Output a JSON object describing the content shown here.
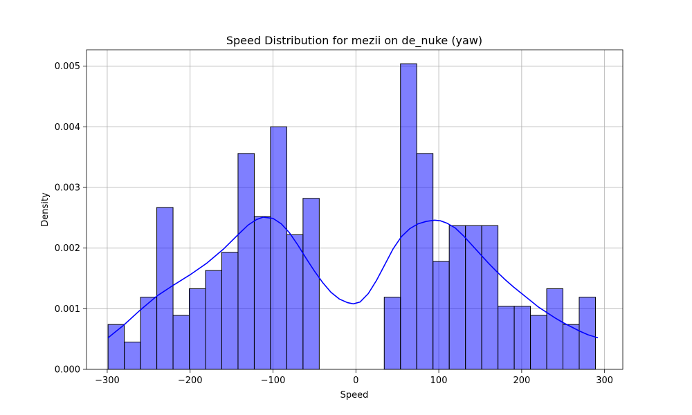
{
  "chart_data": {
    "type": "bar",
    "title": "Speed Distribution for mezii on de_nuke (yaw)",
    "xlabel": "Speed",
    "ylabel": "Density",
    "xlim": [
      -325,
      322
    ],
    "ylim": [
      0,
      0.00527
    ],
    "xticks": [
      -300,
      -200,
      -100,
      0,
      100,
      200,
      300
    ],
    "xtick_labels": [
      "−300",
      "−200",
      "−100",
      "0",
      "100",
      "200",
      "300"
    ],
    "yticks": [
      0,
      0.001,
      0.002,
      0.003,
      0.004,
      0.005
    ],
    "ytick_labels": [
      "0.000",
      "0.001",
      "0.002",
      "0.003",
      "0.004",
      "0.005"
    ],
    "grid": true,
    "bar_color": "#0000ff",
    "kde_color": "#0000ff",
    "bins": [
      {
        "x0": -299.0,
        "x1": -279.4,
        "density": 0.00074
      },
      {
        "x0": -279.4,
        "x1": -259.8,
        "density": 0.00045
      },
      {
        "x0": -259.8,
        "x1": -240.2,
        "density": 0.00119
      },
      {
        "x0": -240.2,
        "x1": -220.6,
        "density": 0.00267
      },
      {
        "x0": -220.6,
        "x1": -201.0,
        "density": 0.00089
      },
      {
        "x0": -201.0,
        "x1": -181.4,
        "density": 0.00133
      },
      {
        "x0": -181.4,
        "x1": -161.8,
        "density": 0.00163
      },
      {
        "x0": -161.8,
        "x1": -142.2,
        "density": 0.00193
      },
      {
        "x0": -142.2,
        "x1": -122.6,
        "density": 0.00356
      },
      {
        "x0": -122.6,
        "x1": -103.0,
        "density": 0.00252
      },
      {
        "x0": -103.0,
        "x1": -83.4,
        "density": 0.004
      },
      {
        "x0": -83.4,
        "x1": -63.8,
        "density": 0.00222
      },
      {
        "x0": -63.8,
        "x1": -44.2,
        "density": 0.00282
      },
      {
        "x0": -44.2,
        "x1": -24.6,
        "density": 0
      },
      {
        "x0": -24.6,
        "x1": -5.0,
        "density": 0
      },
      {
        "x0": -5.0,
        "x1": 14.6,
        "density": 0
      },
      {
        "x0": 14.6,
        "x1": 34.2,
        "density": 0
      },
      {
        "x0": 34.2,
        "x1": 53.8,
        "density": 0.00119
      },
      {
        "x0": 53.8,
        "x1": 73.4,
        "density": 0.00504
      },
      {
        "x0": 73.4,
        "x1": 93.0,
        "density": 0.00356
      },
      {
        "x0": 93.0,
        "x1": 112.6,
        "density": 0.00178
      },
      {
        "x0": 112.6,
        "x1": 132.2,
        "density": 0.00237
      },
      {
        "x0": 132.2,
        "x1": 151.8,
        "density": 0.00237
      },
      {
        "x0": 151.8,
        "x1": 171.4,
        "density": 0.00237
      },
      {
        "x0": 171.4,
        "x1": 191.0,
        "density": 0.00104
      },
      {
        "x0": 191.0,
        "x1": 210.6,
        "density": 0.00104
      },
      {
        "x0": 210.6,
        "x1": 230.2,
        "density": 0.00089
      },
      {
        "x0": 230.2,
        "x1": 249.8,
        "density": 0.00133
      },
      {
        "x0": 249.8,
        "x1": 269.4,
        "density": 0.00074
      },
      {
        "x0": 269.4,
        "x1": 289.0,
        "density": 0.00119
      }
    ],
    "kde": {
      "x": [
        -299,
        -280,
        -260,
        -240,
        -220,
        -200,
        -180,
        -160,
        -140,
        -130,
        -120,
        -112,
        -100,
        -90,
        -80,
        -70,
        -60,
        -50,
        -40,
        -30,
        -20,
        -10,
        -3,
        5,
        15,
        25,
        35,
        45,
        55,
        65,
        75,
        85,
        95,
        102,
        110,
        120,
        130,
        140,
        150,
        160,
        170,
        180,
        190,
        200,
        210,
        220,
        230,
        240,
        250,
        260,
        270,
        280,
        292
      ],
      "y": [
        0.00052,
        0.00073,
        0.00098,
        0.00121,
        0.00139,
        0.00156,
        0.00175,
        0.00198,
        0.00225,
        0.00238,
        0.00247,
        0.00251,
        0.00249,
        0.0024,
        0.00225,
        0.00205,
        0.00183,
        0.00162,
        0.00143,
        0.00127,
        0.00116,
        0.0011,
        0.00108,
        0.00111,
        0.00125,
        0.00147,
        0.00173,
        0.00199,
        0.00219,
        0.00232,
        0.0024,
        0.00244,
        0.00246,
        0.00245,
        0.00241,
        0.00233,
        0.0022,
        0.00205,
        0.0019,
        0.00175,
        0.00161,
        0.00148,
        0.00136,
        0.00125,
        0.00114,
        0.00103,
        0.00094,
        0.00085,
        0.00077,
        0.0007,
        0.00063,
        0.00057,
        0.00052
      ]
    }
  }
}
